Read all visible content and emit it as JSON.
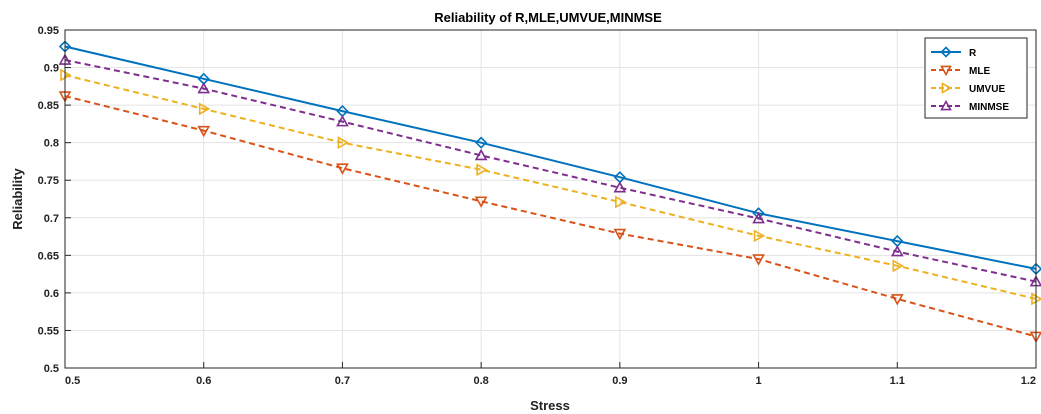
{
  "chart_data": {
    "type": "line",
    "title": "Reliability of R,MLE,UMVUE,MINMSE",
    "xlabel": "Stress",
    "ylabel": "Reliability",
    "x": [
      0.5,
      0.6,
      0.7,
      0.8,
      0.9,
      1.0,
      1.1,
      1.2
    ],
    "xlim": [
      0.5,
      1.2
    ],
    "ylim": [
      0.5,
      0.95
    ],
    "xticks": [
      "0.5",
      "0.6",
      "0.7",
      "0.8",
      "0.9",
      "1",
      "1.1",
      "1.2"
    ],
    "yticks": [
      "0.5",
      "0.55",
      "0.6",
      "0.65",
      "0.7",
      "0.75",
      "0.8",
      "0.85",
      "0.9",
      "0.95"
    ],
    "grid": true,
    "legend_position": "top-right",
    "series": [
      {
        "name": "R",
        "color": "#0072BD",
        "marker": "diamond",
        "dash": false,
        "values": [
          0.928,
          0.885,
          0.842,
          0.8,
          0.754,
          0.706,
          0.669,
          0.632
        ]
      },
      {
        "name": "MLE",
        "color": "#D95319",
        "marker": "triangle-down",
        "dash": true,
        "values": [
          0.862,
          0.816,
          0.766,
          0.722,
          0.679,
          0.645,
          0.592,
          0.542
        ]
      },
      {
        "name": "UMVUE",
        "color": "#EDB120",
        "marker": "triangle-right",
        "dash": true,
        "values": [
          0.89,
          0.845,
          0.8,
          0.764,
          0.721,
          0.676,
          0.636,
          0.592
        ]
      },
      {
        "name": "MINMSE",
        "color": "#7E2F8E",
        "marker": "triangle-up",
        "dash": true,
        "values": [
          0.91,
          0.872,
          0.828,
          0.783,
          0.74,
          0.699,
          0.655,
          0.615
        ]
      }
    ]
  }
}
